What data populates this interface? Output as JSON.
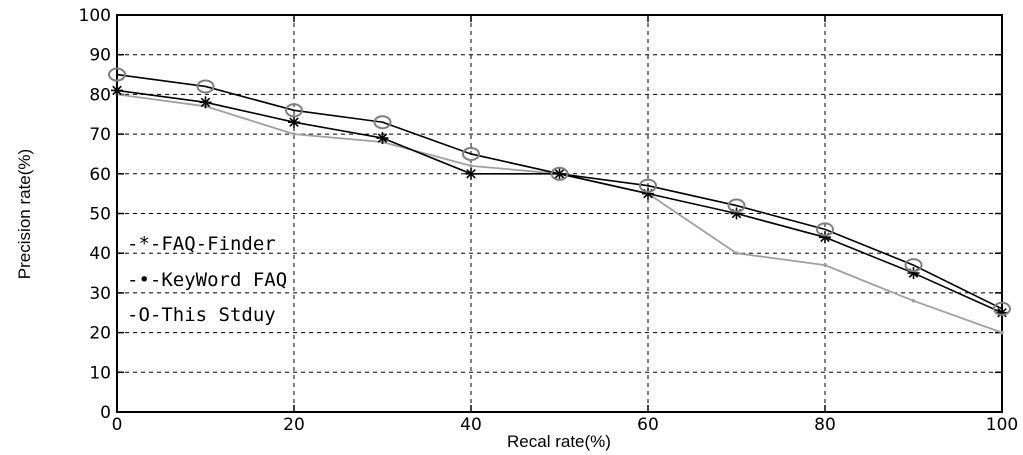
{
  "chart_data": {
    "type": "line",
    "xlabel": "Recal rate(%)",
    "ylabel": "Precision rate(%)",
    "xlim": [
      0,
      100
    ],
    "ylim": [
      0,
      100
    ],
    "xticks": [
      0,
      20,
      40,
      60,
      80,
      100
    ],
    "yticks": [
      0,
      10,
      20,
      30,
      40,
      50,
      60,
      70,
      80,
      90,
      100
    ],
    "grid": true,
    "legend_position": "left",
    "x": [
      0,
      10,
      20,
      30,
      40,
      50,
      60,
      70,
      80,
      90,
      100
    ],
    "series": [
      {
        "name": "FAQ-Finder",
        "legend_label": "-*-FAQ-Finder",
        "marker": "star",
        "color": "#000000",
        "values": [
          81,
          78,
          73,
          69,
          60,
          60,
          55,
          50,
          44,
          35,
          25
        ]
      },
      {
        "name": "KeyWord FAQ",
        "legend_label": "-•-KeyWord FAQ",
        "marker": "dot",
        "color": "#a0a0a0",
        "values": [
          80,
          77,
          70,
          68,
          62,
          60,
          55,
          40,
          37,
          28,
          20
        ]
      },
      {
        "name": "This Stduy",
        "legend_label": "-O-This Stduy",
        "marker": "circle",
        "color": "#000000",
        "values": [
          85,
          82,
          76,
          73,
          65,
          60,
          57,
          52,
          46,
          37,
          26
        ]
      }
    ]
  }
}
